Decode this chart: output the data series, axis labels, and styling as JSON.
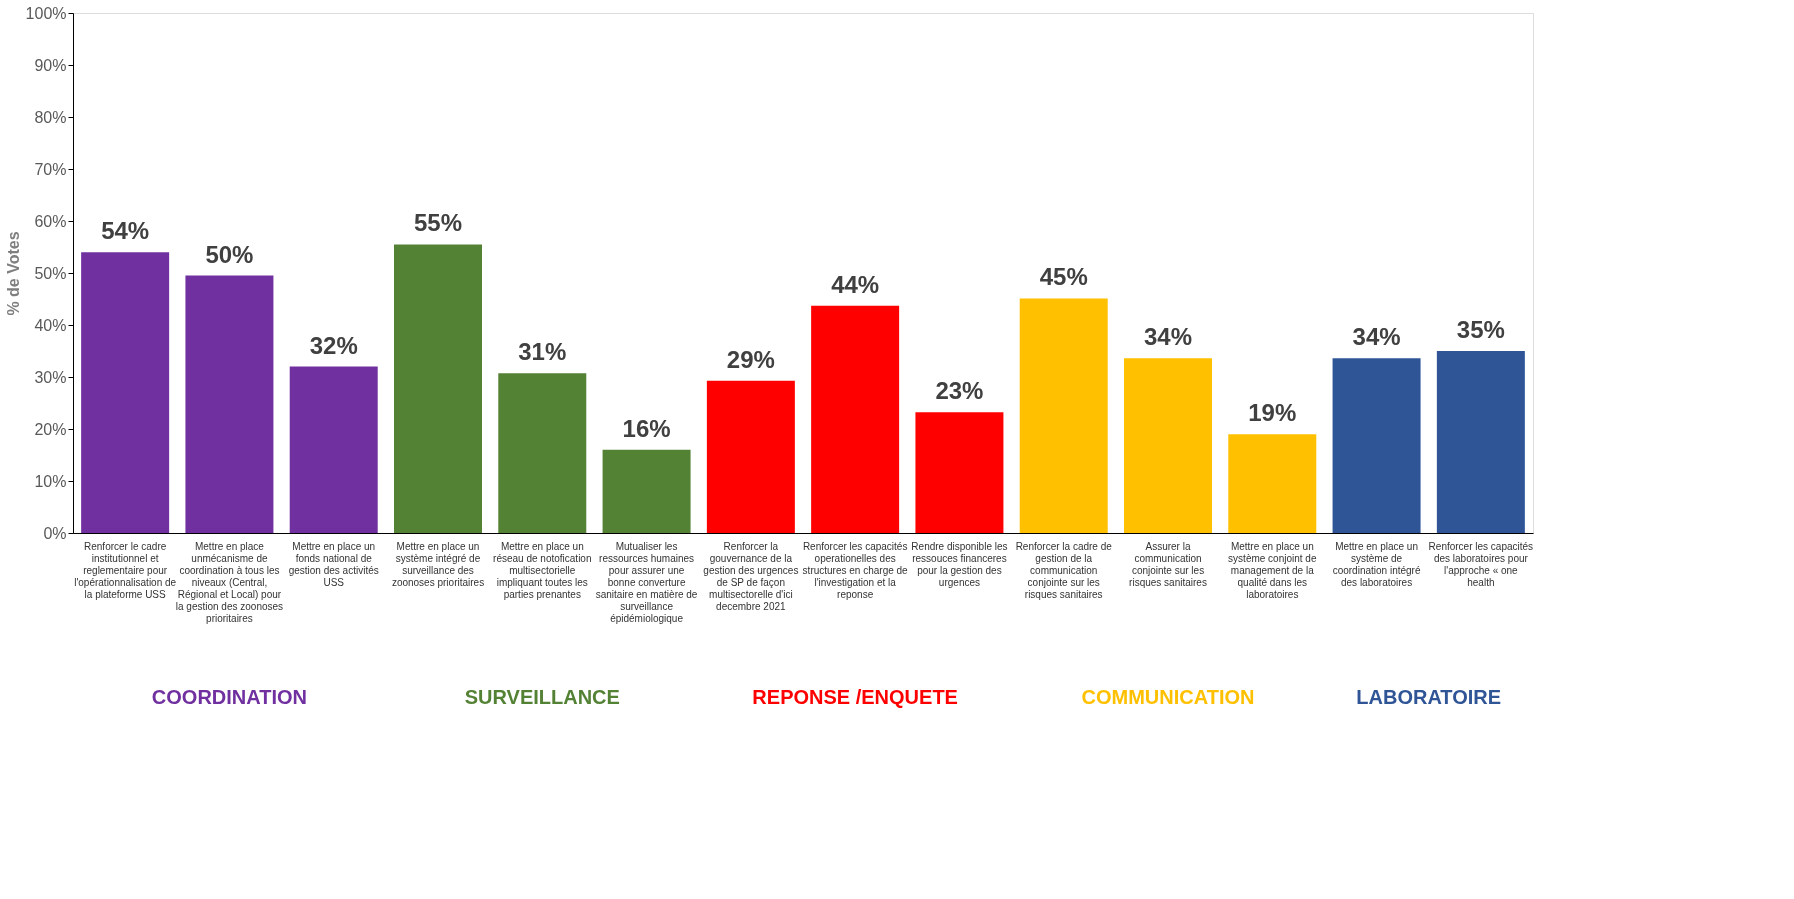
{
  "chart_data": {
    "type": "bar",
    "ylabel": "% de Votes",
    "categories": [
      "Renforcer le cadre\ninstitutionnel et\nreglementaire pour\nl'opérationnalisation de\nla plateforme USS",
      "Mettre en place\nunmécanisme de\ncoordination à tous les\nniveaux (Central,\nRégional et Local) pour\nla gestion des zoonoses\nprioritaires",
      "Mettre en place un\nfonds national de\ngestion des activités\nUSS",
      "Mettre en place un\nsystème intégré de\nsurveillance des\nzoonoses prioritaires",
      "Mettre en place un\nréseau de notofication\nmultisectorielle\nimpliquant toutes les\nparties prenantes",
      "Mutualiser les\nressources humaines\npour assurer une\nbonne converture\nsanitaire en matière de\nsurveillance\népidémiologique",
      "Renforcer la\ngouvernance de la\ngestion des urgences\nde SP de façon\nmultisectorelle d'ici\ndecembre 2021",
      "Renforcer les capacités\noperationelles des\nstructures en charge de\nl'investigation et la\nreponse",
      "Rendre disponible les\nressouces financeres\npour la gestion des\nurgences",
      "Renforcer la cadre de\ngestion de la\ncommunication\nconjointe sur les\nrisques sanitaires",
      "Assurer la\ncommunication\nconjointe sur les\nrisques sanitaires",
      "Mettre en place un\nsystème conjoint de\nmanagement de la\nqualité dans les\nlaboratoires",
      "Mettre en place un\nsystème de\ncoordination intégré\ndes laboratoires",
      "Renforcer les capacités\ndes laboratoires pour\nl'approche « one\nhealth"
    ],
    "series": [
      {
        "name": "COORDINATION",
        "color": "#7030a0",
        "values": [
          54,
          49.5,
          32,
          null,
          null,
          null,
          null,
          null,
          null,
          null,
          null,
          null,
          null,
          null
        ],
        "value_labels": [
          "54%",
          "50%",
          "32%",
          null,
          null,
          null,
          null,
          null,
          null,
          null,
          null,
          null,
          null,
          null
        ]
      },
      {
        "name": "SURVEILLANCE",
        "color": "#548235",
        "values": [
          null,
          null,
          null,
          55.5,
          30.7,
          16,
          null,
          null,
          null,
          null,
          null,
          null,
          null,
          null
        ],
        "value_labels": [
          null,
          null,
          null,
          "55%",
          "31%",
          "16%",
          null,
          null,
          null,
          null,
          null,
          null,
          null,
          null
        ]
      },
      {
        "name": "REPONSE /ENQUETE",
        "color": "#ff0000",
        "values": [
          null,
          null,
          null,
          null,
          null,
          null,
          29.3,
          43.7,
          23.2,
          null,
          null,
          null,
          null,
          null
        ],
        "value_labels": [
          null,
          null,
          null,
          null,
          null,
          null,
          "29%",
          "44%",
          "23%",
          null,
          null,
          null,
          null,
          null
        ]
      },
      {
        "name": "COMMUNICATION",
        "color": "#ffc000",
        "values": [
          null,
          null,
          null,
          null,
          null,
          null,
          null,
          null,
          null,
          45.1,
          33.6,
          19,
          null,
          null
        ],
        "value_labels": [
          null,
          null,
          null,
          null,
          null,
          null,
          null,
          null,
          null,
          "45%",
          "34%",
          "19%",
          null,
          null
        ]
      },
      {
        "name": "LABORATOIRE",
        "color": "#2f5597",
        "values": [
          null,
          null,
          null,
          null,
          null,
          null,
          null,
          null,
          null,
          null,
          null,
          null,
          33.6,
          35
        ],
        "value_labels": [
          null,
          null,
          null,
          null,
          null,
          null,
          null,
          null,
          null,
          null,
          null,
          null,
          "34%",
          "35%"
        ]
      }
    ],
    "ylim": [
      0,
      100
    ],
    "yticks": [
      {
        "value": 0,
        "label": "0%"
      },
      {
        "value": 10,
        "label": "10%"
      },
      {
        "value": 20,
        "label": "20%"
      },
      {
        "value": 30,
        "label": "30%"
      },
      {
        "value": 40,
        "label": "40%"
      },
      {
        "value": 50,
        "label": "50%"
      },
      {
        "value": 60,
        "label": "60%"
      },
      {
        "value": 70,
        "label": "70%"
      },
      {
        "value": 80,
        "label": "80%"
      },
      {
        "value": 90,
        "label": "90%"
      },
      {
        "value": 100,
        "label": "100%"
      }
    ],
    "grid": false,
    "legend": false
  }
}
